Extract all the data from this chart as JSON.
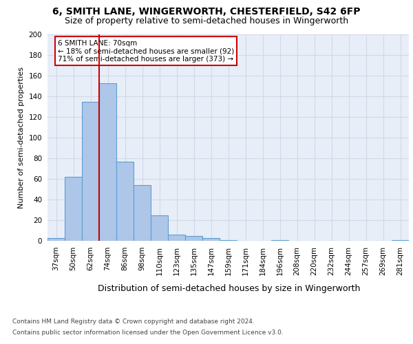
{
  "title1": "6, SMITH LANE, WINGERWORTH, CHESTERFIELD, S42 6FP",
  "title2": "Size of property relative to semi-detached houses in Wingerworth",
  "xlabel": "Distribution of semi-detached houses by size in Wingerworth",
  "ylabel": "Number of semi-detached properties",
  "footnote1": "Contains HM Land Registry data © Crown copyright and database right 2024.",
  "footnote2": "Contains public sector information licensed under the Open Government Licence v3.0.",
  "categories": [
    "37sqm",
    "50sqm",
    "62sqm",
    "74sqm",
    "86sqm",
    "98sqm",
    "110sqm",
    "123sqm",
    "135sqm",
    "147sqm",
    "159sqm",
    "171sqm",
    "184sqm",
    "196sqm",
    "208sqm",
    "220sqm",
    "232sqm",
    "244sqm",
    "257sqm",
    "269sqm",
    "281sqm"
  ],
  "values": [
    3,
    62,
    135,
    153,
    77,
    54,
    25,
    6,
    5,
    3,
    1,
    0,
    0,
    1,
    0,
    0,
    0,
    0,
    0,
    0,
    1
  ],
  "bar_color": "#aec6e8",
  "bar_edge_color": "#5a9fd4",
  "bar_linewidth": 0.8,
  "vline_x": 2.5,
  "vline_color": "#cc0000",
  "annotation_text": "6 SMITH LANE: 70sqm\n← 18% of semi-detached houses are smaller (92)\n71% of semi-detached houses are larger (373) →",
  "annotation_box_color": "#ffffff",
  "annotation_box_edge": "#cc0000",
  "ylim": [
    0,
    200
  ],
  "yticks": [
    0,
    20,
    40,
    60,
    80,
    100,
    120,
    140,
    160,
    180,
    200
  ],
  "grid_color": "#d0d8e8",
  "background_color": "#e8eef8",
  "title1_fontsize": 10,
  "title2_fontsize": 9,
  "xlabel_fontsize": 9,
  "ylabel_fontsize": 8,
  "tick_fontsize": 7.5,
  "annotation_fontsize": 7.5,
  "footnote_fontsize": 6.5
}
